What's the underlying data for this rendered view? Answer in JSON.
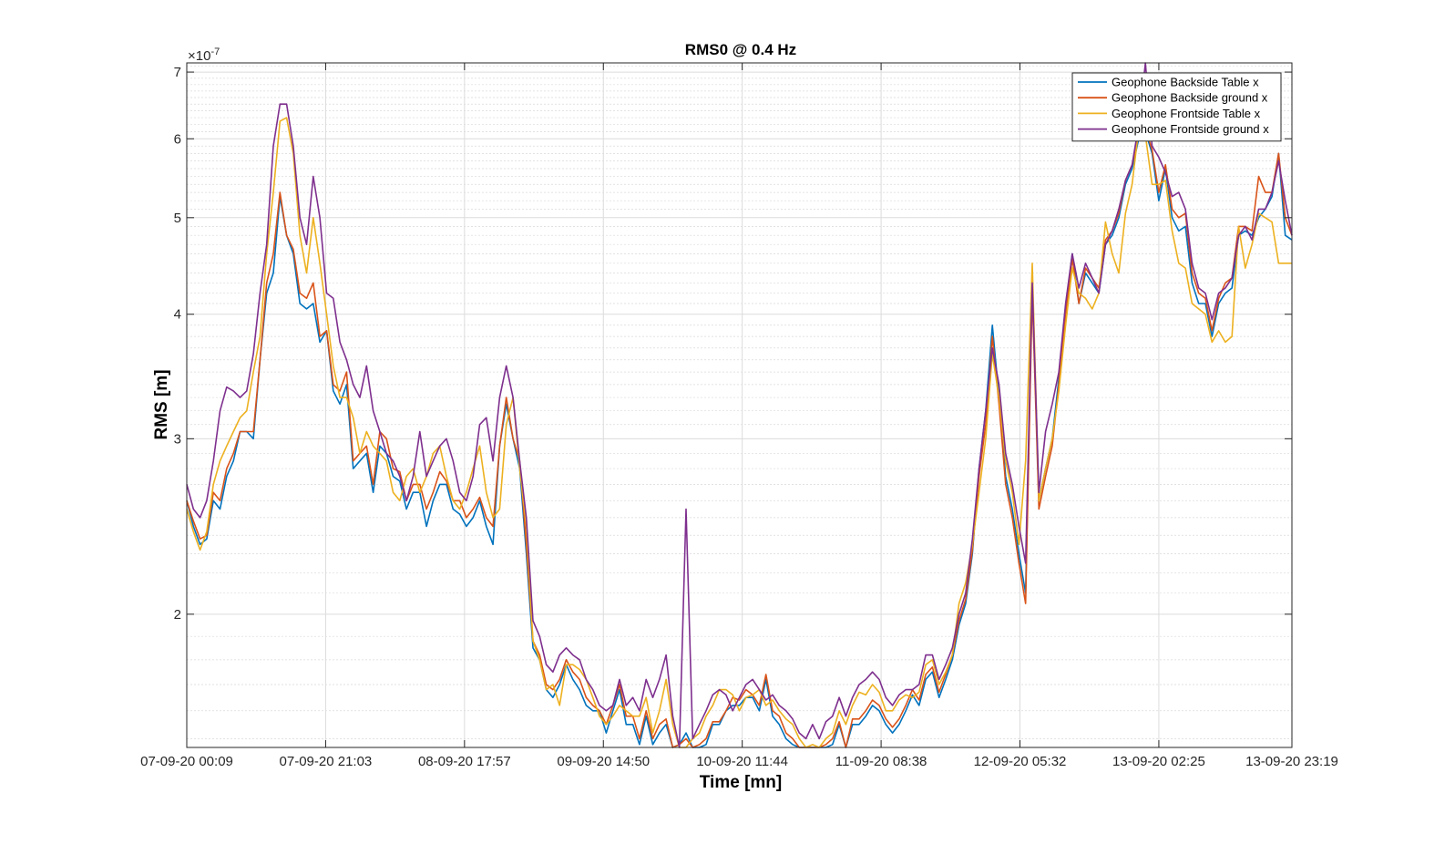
{
  "chart_data": {
    "type": "line",
    "title": "RMS0 @ 0.4 Hz",
    "xlabel": "Time [mn]",
    "ylabel": "RMS [m]",
    "y_scale": "log",
    "y_exponent_label": "×10",
    "y_exponent_power": "-7",
    "ylim": [
      1.47e-07,
      7.15e-07
    ],
    "y_ticks": [
      2,
      3,
      4,
      5,
      6,
      7
    ],
    "x_range": [
      0,
      191
    ],
    "x_ticks": [
      {
        "pos": 0,
        "label": "07-09-20 00:09"
      },
      {
        "pos": 24,
        "label": "07-09-20 21:03"
      },
      {
        "pos": 48,
        "label": "08-09-20 17:57"
      },
      {
        "pos": 72,
        "label": "09-09-20 14:50"
      },
      {
        "pos": 96,
        "label": "10-09-20 11:44"
      },
      {
        "pos": 120,
        "label": "11-09-20 08:38"
      },
      {
        "pos": 144,
        "label": "12-09-20 05:32"
      },
      {
        "pos": 168,
        "label": "13-09-20 02:25"
      },
      {
        "pos": 191,
        "label": "13-09-20 23:19"
      }
    ],
    "grid": true,
    "minor_grid": true,
    "legend_position": "top-right",
    "series": [
      {
        "name": "Geophone Backside Table x",
        "color": "#0072BD",
        "values": [
          2.6,
          2.45,
          2.35,
          2.38,
          2.6,
          2.55,
          2.75,
          2.85,
          3.05,
          3.05,
          3.0,
          3.6,
          4.2,
          4.4,
          5.25,
          4.8,
          4.6,
          4.1,
          4.05,
          4.1,
          3.75,
          3.85,
          3.35,
          3.25,
          3.4,
          2.8,
          2.85,
          2.9,
          2.65,
          2.95,
          2.9,
          2.75,
          2.72,
          2.55,
          2.65,
          2.65,
          2.45,
          2.6,
          2.7,
          2.7,
          2.55,
          2.52,
          2.45,
          2.5,
          2.6,
          2.45,
          2.35,
          2.95,
          3.25,
          3.0,
          2.8,
          2.3,
          1.85,
          1.8,
          1.68,
          1.65,
          1.7,
          1.78,
          1.72,
          1.68,
          1.62,
          1.6,
          1.6,
          1.52,
          1.6,
          1.68,
          1.55,
          1.55,
          1.48,
          1.58,
          1.48,
          1.52,
          1.55,
          1.42,
          1.48,
          1.52,
          1.45,
          1.47,
          1.48,
          1.55,
          1.55,
          1.6,
          1.62,
          1.62,
          1.65,
          1.65,
          1.6,
          1.72,
          1.58,
          1.55,
          1.5,
          1.48,
          1.45,
          1.4,
          1.45,
          1.4,
          1.46,
          1.48,
          1.55,
          1.45,
          1.55,
          1.55,
          1.58,
          1.62,
          1.6,
          1.55,
          1.52,
          1.55,
          1.6,
          1.66,
          1.62,
          1.72,
          1.75,
          1.65,
          1.72,
          1.8,
          1.95,
          2.05,
          2.3,
          2.8,
          3.2,
          3.9,
          3.3,
          2.75,
          2.55,
          2.3,
          2.1,
          4.3,
          2.6,
          2.8,
          3.0,
          3.45,
          4.05,
          4.6,
          4.1,
          4.4,
          4.3,
          4.2,
          4.7,
          4.8,
          5.0,
          5.4,
          5.6,
          6.0,
          6.1,
          5.8,
          5.2,
          5.6,
          5.0,
          4.85,
          4.9,
          4.3,
          4.1,
          4.1,
          3.8,
          4.1,
          4.2,
          4.25,
          4.8,
          4.85,
          4.8,
          5.0,
          5.1,
          5.25,
          5.8,
          4.8,
          4.75
        ]
      },
      {
        "name": "Geophone Backside ground x",
        "color": "#D95319",
        "values": [
          2.6,
          2.48,
          2.38,
          2.4,
          2.65,
          2.6,
          2.8,
          2.9,
          3.05,
          3.05,
          3.05,
          3.6,
          4.3,
          4.6,
          5.3,
          4.8,
          4.65,
          4.2,
          4.15,
          4.3,
          3.8,
          3.85,
          3.4,
          3.35,
          3.5,
          2.85,
          2.9,
          2.95,
          2.7,
          3.05,
          3.0,
          2.8,
          2.78,
          2.6,
          2.7,
          2.7,
          2.55,
          2.65,
          2.78,
          2.72,
          2.6,
          2.6,
          2.5,
          2.55,
          2.62,
          2.5,
          2.45,
          2.95,
          3.3,
          3.0,
          2.85,
          2.35,
          1.88,
          1.82,
          1.7,
          1.68,
          1.72,
          1.8,
          1.75,
          1.72,
          1.65,
          1.62,
          1.6,
          1.55,
          1.62,
          1.7,
          1.58,
          1.58,
          1.5,
          1.6,
          1.5,
          1.55,
          1.57,
          1.45,
          1.48,
          1.5,
          1.45,
          1.48,
          1.5,
          1.56,
          1.56,
          1.6,
          1.65,
          1.64,
          1.68,
          1.66,
          1.62,
          1.74,
          1.6,
          1.58,
          1.52,
          1.5,
          1.47,
          1.42,
          1.47,
          1.42,
          1.48,
          1.5,
          1.56,
          1.47,
          1.57,
          1.57,
          1.6,
          1.64,
          1.62,
          1.57,
          1.54,
          1.57,
          1.62,
          1.68,
          1.64,
          1.74,
          1.77,
          1.67,
          1.74,
          1.82,
          1.97,
          2.07,
          2.32,
          2.75,
          3.1,
          3.8,
          3.25,
          2.7,
          2.5,
          2.25,
          2.05,
          4.2,
          2.55,
          2.75,
          2.95,
          3.4,
          4.0,
          4.55,
          4.1,
          4.45,
          4.35,
          4.25,
          4.75,
          4.85,
          5.05,
          5.45,
          5.65,
          6.05,
          6.15,
          5.85,
          5.3,
          5.65,
          5.1,
          5.0,
          5.05,
          4.4,
          4.2,
          4.15,
          3.85,
          4.15,
          4.3,
          4.35,
          4.9,
          4.9,
          4.85,
          5.5,
          5.3,
          5.3,
          5.8,
          5.0,
          4.8
        ]
      },
      {
        "name": "Geophone Frontside Table x",
        "color": "#EDB120",
        "values": [
          2.55,
          2.42,
          2.32,
          2.42,
          2.7,
          2.85,
          2.95,
          3.05,
          3.15,
          3.2,
          3.5,
          3.8,
          4.6,
          5.3,
          6.25,
          6.3,
          5.8,
          4.8,
          4.4,
          5.0,
          4.5,
          4.0,
          3.55,
          3.3,
          3.3,
          3.15,
          2.9,
          3.05,
          2.95,
          2.9,
          2.85,
          2.65,
          2.6,
          2.75,
          2.8,
          2.65,
          2.75,
          2.9,
          2.95,
          2.75,
          2.6,
          2.55,
          2.65,
          2.8,
          2.95,
          2.65,
          2.5,
          2.55,
          3.1,
          3.3,
          2.8,
          2.45,
          1.88,
          1.8,
          1.68,
          1.7,
          1.62,
          1.78,
          1.78,
          1.76,
          1.72,
          1.65,
          1.58,
          1.55,
          1.58,
          1.62,
          1.6,
          1.58,
          1.58,
          1.65,
          1.52,
          1.6,
          1.72,
          1.55,
          1.45,
          1.45,
          1.5,
          1.52,
          1.58,
          1.62,
          1.68,
          1.68,
          1.66,
          1.6,
          1.65,
          1.66,
          1.68,
          1.62,
          1.64,
          1.6,
          1.57,
          1.55,
          1.5,
          1.45,
          1.48,
          1.45,
          1.5,
          1.52,
          1.6,
          1.55,
          1.62,
          1.67,
          1.66,
          1.7,
          1.67,
          1.6,
          1.6,
          1.64,
          1.66,
          1.65,
          1.67,
          1.78,
          1.8,
          1.7,
          1.75,
          1.82,
          2.05,
          2.15,
          2.35,
          2.65,
          3.0,
          3.65,
          3.3,
          2.85,
          2.65,
          2.35,
          2.85,
          4.5,
          2.6,
          2.8,
          3.0,
          3.35,
          3.9,
          4.45,
          4.2,
          4.15,
          4.05,
          4.2,
          4.95,
          4.6,
          4.4,
          5.05,
          5.4,
          6.15,
          6.05,
          5.4,
          5.4,
          5.45,
          4.85,
          4.5,
          4.45,
          4.1,
          4.05,
          4.0,
          3.75,
          3.85,
          3.75,
          3.8,
          4.9,
          4.45,
          4.7,
          5.05,
          5.0,
          4.95,
          4.5,
          4.5,
          4.5
        ]
      },
      {
        "name": "Geophone Frontside ground x",
        "color": "#7E2F8E",
        "values": [
          2.7,
          2.55,
          2.5,
          2.6,
          2.85,
          3.2,
          3.38,
          3.35,
          3.3,
          3.35,
          3.65,
          4.2,
          4.7,
          5.9,
          6.5,
          6.5,
          5.9,
          5.0,
          4.7,
          5.5,
          5.0,
          4.2,
          4.15,
          3.75,
          3.6,
          3.4,
          3.3,
          3.55,
          3.2,
          3.05,
          2.9,
          2.85,
          2.75,
          2.6,
          2.75,
          3.05,
          2.75,
          2.85,
          2.95,
          3.0,
          2.85,
          2.65,
          2.6,
          2.75,
          3.1,
          3.15,
          2.85,
          3.3,
          3.55,
          3.3,
          2.85,
          2.5,
          1.97,
          1.9,
          1.78,
          1.75,
          1.82,
          1.85,
          1.82,
          1.8,
          1.72,
          1.68,
          1.62,
          1.6,
          1.62,
          1.72,
          1.62,
          1.65,
          1.6,
          1.72,
          1.65,
          1.72,
          1.82,
          1.58,
          1.45,
          2.55,
          1.5,
          1.55,
          1.6,
          1.66,
          1.68,
          1.66,
          1.6,
          1.65,
          1.7,
          1.72,
          1.68,
          1.64,
          1.66,
          1.62,
          1.6,
          1.57,
          1.52,
          1.5,
          1.55,
          1.5,
          1.56,
          1.58,
          1.65,
          1.58,
          1.65,
          1.7,
          1.72,
          1.75,
          1.72,
          1.65,
          1.62,
          1.66,
          1.68,
          1.68,
          1.7,
          1.82,
          1.82,
          1.72,
          1.78,
          1.85,
          2.0,
          2.1,
          2.38,
          2.8,
          3.2,
          3.7,
          3.4,
          2.9,
          2.7,
          2.45,
          2.25,
          4.3,
          2.65,
          3.05,
          3.25,
          3.5,
          4.1,
          4.6,
          4.25,
          4.5,
          4.35,
          4.2,
          4.7,
          4.85,
          5.1,
          5.45,
          5.65,
          6.2,
          7.2,
          5.9,
          5.75,
          5.55,
          5.25,
          5.3,
          5.1,
          4.5,
          4.25,
          4.2,
          3.95,
          4.2,
          4.25,
          4.35,
          4.8,
          4.9,
          4.75,
          5.1,
          5.1,
          5.3,
          5.7,
          5.2,
          4.8
        ]
      }
    ]
  }
}
